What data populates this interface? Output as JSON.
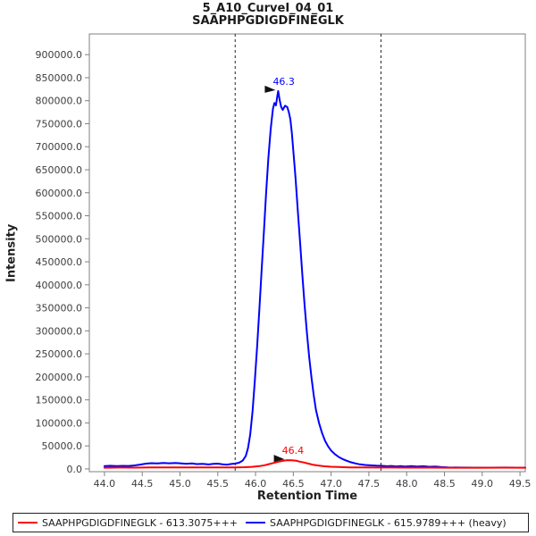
{
  "title": {
    "line1": "5_A10_CurveI_04_01",
    "line2": "SAAPHPGDIGDFINEGLK"
  },
  "axes": {
    "x": {
      "label": "Retention Time",
      "ticks": [
        "44.0",
        "44.5",
        "45.0",
        "45.5",
        "46.0",
        "46.5",
        "47.0",
        "47.5",
        "48.0",
        "48.5",
        "49.0",
        "49.5"
      ]
    },
    "y": {
      "label": "Intensity",
      "ticks": [
        "0.0",
        "50000.0",
        "100000.0",
        "150000.0",
        "200000.0",
        "250000.0",
        "300000.0",
        "350000.0",
        "400000.0",
        "450000.0",
        "500000.0",
        "550000.0",
        "600000.0",
        "650000.0",
        "700000.0",
        "750000.0",
        "800000.0",
        "850000.0",
        "900000.0"
      ]
    }
  },
  "chart_data": {
    "type": "line",
    "title": "5_A10_CurveI_04_01 SAAPHPGDIGDFINEGLK",
    "xlabel": "Retention Time",
    "ylabel": "Intensity",
    "xlim": [
      43.8,
      49.57
    ],
    "ylim": [
      -6000,
      945000
    ],
    "grid": false,
    "boundary_lines_x": [
      45.73,
      47.66
    ],
    "frame_color": "#808080",
    "boundary_color": "#222222",
    "series": [
      {
        "name": "SAAPHPGDIGDFINEGLK - 615.9789+++ (heavy)",
        "color": "#0000ff",
        "peak_rt": 46.3,
        "peak_height": 821000,
        "points": [
          [
            44.0,
            6000
          ],
          [
            44.08,
            6800
          ],
          [
            44.16,
            6200
          ],
          [
            44.24,
            6600
          ],
          [
            44.32,
            6400
          ],
          [
            44.4,
            7500
          ],
          [
            44.48,
            9500
          ],
          [
            44.55,
            11500
          ],
          [
            44.62,
            12500
          ],
          [
            44.7,
            11800
          ],
          [
            44.78,
            12800
          ],
          [
            44.86,
            12200
          ],
          [
            44.94,
            12800
          ],
          [
            45.02,
            12000
          ],
          [
            45.08,
            11200
          ],
          [
            45.16,
            11800
          ],
          [
            45.22,
            10400
          ],
          [
            45.3,
            10800
          ],
          [
            45.38,
            9800
          ],
          [
            45.44,
            10800
          ],
          [
            45.5,
            11400
          ],
          [
            45.56,
            10000
          ],
          [
            45.62,
            9400
          ],
          [
            45.68,
            10600
          ],
          [
            45.73,
            11600
          ],
          [
            45.78,
            13500
          ],
          [
            45.83,
            18000
          ],
          [
            45.87,
            28000
          ],
          [
            45.9,
            45000
          ],
          [
            45.93,
            75000
          ],
          [
            45.96,
            125000
          ],
          [
            45.99,
            190000
          ],
          [
            46.02,
            265000
          ],
          [
            46.05,
            345000
          ],
          [
            46.08,
            430000
          ],
          [
            46.11,
            515000
          ],
          [
            46.14,
            600000
          ],
          [
            46.17,
            675000
          ],
          [
            46.2,
            738000
          ],
          [
            46.23,
            782000
          ],
          [
            46.25,
            795000
          ],
          [
            46.27,
            790000
          ],
          [
            46.29,
            812000
          ],
          [
            46.3,
            821000
          ],
          [
            46.32,
            801000
          ],
          [
            46.34,
            786000
          ],
          [
            46.36,
            780000
          ],
          [
            46.39,
            789000
          ],
          [
            46.42,
            786000
          ],
          [
            46.44,
            775000
          ],
          [
            46.46,
            760000
          ],
          [
            46.48,
            730000
          ],
          [
            46.5,
            690000
          ],
          [
            46.53,
            630000
          ],
          [
            46.56,
            560000
          ],
          [
            46.59,
            490000
          ],
          [
            46.62,
            420000
          ],
          [
            46.65,
            355000
          ],
          [
            46.68,
            295000
          ],
          [
            46.71,
            243000
          ],
          [
            46.74,
            198000
          ],
          [
            46.77,
            160000
          ],
          [
            46.8,
            128000
          ],
          [
            46.84,
            100000
          ],
          [
            46.88,
            78000
          ],
          [
            46.92,
            61000
          ],
          [
            46.96,
            49000
          ],
          [
            47.0,
            40000
          ],
          [
            47.05,
            32000
          ],
          [
            47.1,
            26000
          ],
          [
            47.15,
            21500
          ],
          [
            47.2,
            18000
          ],
          [
            47.26,
            14500
          ],
          [
            47.32,
            12000
          ],
          [
            47.38,
            10000
          ],
          [
            47.45,
            8500
          ],
          [
            47.52,
            7800
          ],
          [
            47.6,
            7000
          ],
          [
            47.66,
            6800
          ],
          [
            47.74,
            5800
          ],
          [
            47.8,
            6400
          ],
          [
            47.86,
            5400
          ],
          [
            47.92,
            6000
          ],
          [
            47.98,
            5200
          ],
          [
            48.06,
            6000
          ],
          [
            48.14,
            5000
          ],
          [
            48.22,
            5800
          ],
          [
            48.3,
            4600
          ],
          [
            48.38,
            5200
          ],
          [
            48.45,
            4000
          ],
          [
            48.55,
            3400
          ],
          [
            48.7,
            3000
          ],
          [
            48.9,
            2800
          ],
          [
            49.1,
            2800
          ],
          [
            49.3,
            3000
          ],
          [
            49.45,
            2800
          ],
          [
            49.57,
            2800
          ]
        ]
      },
      {
        "name": "SAAPHPGDIGDFINEGLK - 613.3075+++",
        "color": "#ff0000",
        "peak_rt": 46.4,
        "peak_height": 19000,
        "points": [
          [
            44.0,
            2600
          ],
          [
            44.2,
            2900
          ],
          [
            44.4,
            2700
          ],
          [
            44.6,
            3100
          ],
          [
            44.8,
            3300
          ],
          [
            45.0,
            3400
          ],
          [
            45.2,
            3100
          ],
          [
            45.4,
            3300
          ],
          [
            45.6,
            3200
          ],
          [
            45.73,
            3400
          ],
          [
            45.85,
            3800
          ],
          [
            45.95,
            4500
          ],
          [
            46.05,
            6000
          ],
          [
            46.12,
            8000
          ],
          [
            46.18,
            10500
          ],
          [
            46.24,
            13000
          ],
          [
            46.3,
            15500
          ],
          [
            46.36,
            17500
          ],
          [
            46.42,
            19000
          ],
          [
            46.48,
            18800
          ],
          [
            46.54,
            17800
          ],
          [
            46.58,
            16000
          ],
          [
            46.64,
            14000
          ],
          [
            46.7,
            11500
          ],
          [
            46.76,
            9200
          ],
          [
            46.82,
            7500
          ],
          [
            46.9,
            5800
          ],
          [
            47.0,
            4600
          ],
          [
            47.1,
            4000
          ],
          [
            47.25,
            3400
          ],
          [
            47.4,
            3100
          ],
          [
            47.6,
            2900
          ],
          [
            47.8,
            2900
          ],
          [
            48.0,
            2700
          ],
          [
            48.3,
            2700
          ],
          [
            48.6,
            2600
          ],
          [
            49.0,
            2600
          ],
          [
            49.3,
            2700
          ],
          [
            49.57,
            2600
          ]
        ]
      }
    ],
    "annotations": [
      {
        "text": "46.3",
        "color": "#0000ff",
        "x": 46.3,
        "y": 821000
      },
      {
        "text": "46.4",
        "color": "#ff0000",
        "x": 46.42,
        "y": 19000
      }
    ]
  },
  "legend": {
    "items": [
      {
        "label": "SAAPHPGDIGDFINEGLK - 613.3075+++",
        "color": "#ff0000"
      },
      {
        "label": "SAAPHPGDIGDFINEGLK - 615.9789+++ (heavy)",
        "color": "#0000ff"
      }
    ]
  }
}
